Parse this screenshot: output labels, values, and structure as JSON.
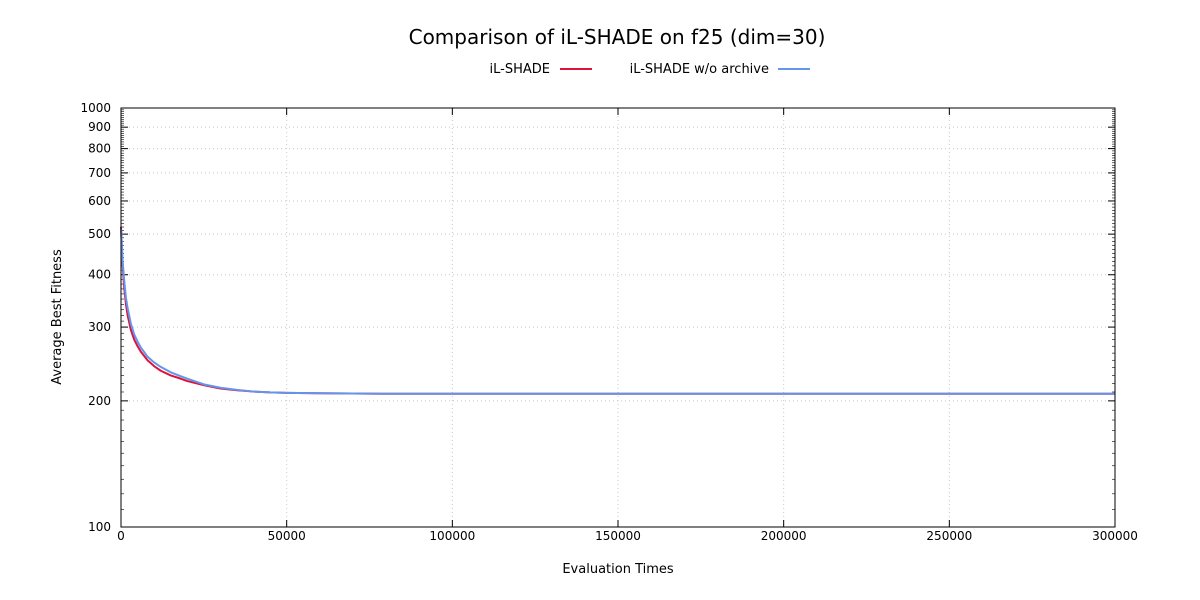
{
  "chart_data": {
    "type": "line",
    "title": "Comparison of iL-SHADE on f25 (dim=30)",
    "xlabel": "Evaluation Times",
    "ylabel": "Average Best Fitness",
    "xlim": [
      0,
      300000
    ],
    "ylim": [
      100,
      1000
    ],
    "yscale": "log",
    "grid": true,
    "legend_position": "top-center",
    "x_ticks": [
      "0",
      "50000",
      "100000",
      "150000",
      "200000",
      "250000",
      "300000"
    ],
    "x_tick_values": [
      0,
      50000,
      100000,
      150000,
      200000,
      250000,
      300000
    ],
    "y_ticks": [
      "100",
      "200",
      "300",
      "400",
      "500",
      "600",
      "700",
      "800",
      "900",
      "1000"
    ],
    "y_tick_values": [
      100,
      200,
      300,
      400,
      500,
      600,
      700,
      800,
      900,
      1000
    ],
    "series": [
      {
        "name": "iL-SHADE",
        "color": "#dc143c",
        "x": [
          0,
          500,
          1000,
          1500,
          2000,
          3000,
          4000,
          5000,
          6000,
          8000,
          10000,
          12000,
          15000,
          18000,
          20000,
          25000,
          30000,
          35000,
          40000,
          45000,
          50000,
          60000,
          70000,
          80000,
          100000,
          150000,
          200000,
          250000,
          300000
        ],
        "y": [
          520,
          420,
          370,
          340,
          320,
          295,
          280,
          270,
          262,
          250,
          242,
          236,
          230,
          226,
          223,
          218,
          214,
          212,
          210.5,
          209.5,
          209,
          208.5,
          208.2,
          208,
          208,
          208,
          208,
          208,
          208
        ]
      },
      {
        "name": "iL-SHADE w/o archive",
        "color": "#6495ed",
        "x": [
          0,
          500,
          1000,
          1500,
          2000,
          3000,
          4000,
          5000,
          6000,
          8000,
          10000,
          12000,
          15000,
          18000,
          20000,
          25000,
          30000,
          35000,
          40000,
          45000,
          50000,
          60000,
          70000,
          80000,
          100000,
          150000,
          200000,
          250000,
          300000
        ],
        "y": [
          515,
          430,
          385,
          352,
          333,
          305,
          288,
          277,
          268,
          255,
          247,
          241,
          234,
          229,
          226,
          219,
          215,
          212.5,
          210.5,
          209.5,
          209,
          208.5,
          208.2,
          208,
          208,
          208,
          208,
          208,
          208
        ]
      }
    ]
  }
}
